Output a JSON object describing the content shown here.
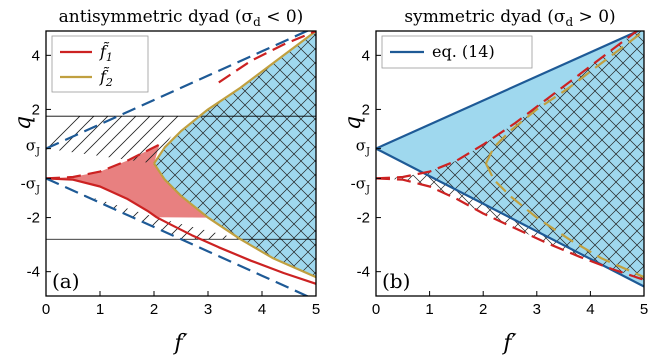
{
  "chart_data": [
    {
      "type": "line",
      "panel_label": "(a)",
      "title": "antisymmetric dyad (σ",
      "title_sub": "d",
      "title_rest": " < 0)",
      "xlabel": "f′",
      "ylabel": "q",
      "xlim": [
        0,
        5
      ],
      "ylim": [
        -4.9,
        4.9
      ],
      "xticks": [
        0,
        1,
        2,
        3,
        4,
        5
      ],
      "yticks": [
        -4,
        -2,
        2,
        4
      ],
      "sigma_J": 0.55,
      "sigma_ticks": [
        {
          "value": 0.55,
          "sign": "",
          "letter": "σ",
          "sub": "J"
        },
        {
          "value": -0.55,
          "sign": "-",
          "letter": "σ",
          "sub": "J"
        }
      ],
      "legend": {
        "position": "top-left",
        "entries": [
          {
            "label": "f̃",
            "sub": "1",
            "color": "#cc2222"
          },
          {
            "label": "f̃",
            "sub": "2",
            "color": "#c0a040"
          }
        ]
      },
      "hlines": [
        1.75,
        -2.8
      ],
      "series": [
        {
          "name": "f̃1",
          "style": "solid",
          "color": "#cc2222",
          "x": [
            0.0,
            0.5,
            1.0,
            1.5,
            1.9,
            2.05,
            2.3,
            2.7,
            3.2,
            3.8,
            4.4,
            5.0
          ],
          "y": [
            -0.55,
            -0.6,
            -0.85,
            -1.3,
            -1.78,
            -1.99,
            -2.25,
            -2.65,
            -3.1,
            -3.6,
            -4.05,
            -4.45
          ]
        },
        {
          "name": "f̃2",
          "style": "solid",
          "color": "#c0a040",
          "x": [
            2.0,
            2.2,
            2.5,
            3.0,
            3.6,
            4.2,
            5.0
          ],
          "y": [
            0.0,
            0.6,
            1.2,
            2.0,
            2.8,
            3.7,
            4.9
          ]
        },
        {
          "name": "f̃2",
          "style": "solid",
          "color": "#c0a040",
          "x": [
            2.0,
            2.2,
            2.5,
            3.0,
            3.6,
            4.2,
            5.0
          ],
          "y": [
            0.0,
            -0.6,
            -1.2,
            -2.0,
            -2.8,
            -3.5,
            -4.2
          ]
        },
        {
          "name": "f̃1",
          "style": "dashed",
          "color": "#cc2222",
          "x": [
            0.0,
            0.5,
            1.0,
            1.5,
            2.1
          ],
          "y": [
            -0.55,
            -0.5,
            -0.3,
            0.1,
            0.7
          ]
        },
        {
          "name": "f̃1",
          "style": "dashed",
          "color": "#cc2222",
          "x": [
            3.2,
            3.8,
            4.4,
            5.0
          ],
          "y": [
            3.0,
            3.8,
            4.4,
            4.9
          ]
        },
        {
          "name": "eq. (14)",
          "style": "dashed",
          "color": "#1e5a96",
          "x": [
            0.0,
            1.0,
            2.0,
            3.0,
            4.0,
            5.0
          ],
          "y": [
            0.55,
            1.45,
            2.35,
            3.25,
            4.15,
            5.05
          ]
        },
        {
          "name": "eq. (14)",
          "style": "dashed",
          "color": "#1e5a96",
          "x": [
            0.0,
            1.0,
            2.0,
            3.0,
            4.0,
            5.0
          ],
          "y": [
            -0.55,
            -1.45,
            -2.35,
            -3.25,
            -4.15,
            -5.05
          ]
        }
      ]
    },
    {
      "type": "line",
      "panel_label": "(b)",
      "title": "symmetric dyad (σ",
      "title_sub": "d",
      "title_rest": " > 0)",
      "xlabel": "f′",
      "ylabel": "q",
      "xlim": [
        0,
        5
      ],
      "ylim": [
        -4.9,
        4.9
      ],
      "xticks": [
        0,
        1,
        2,
        3,
        4,
        5
      ],
      "yticks": [
        -4,
        -2,
        2,
        4
      ],
      "sigma_J": 0.55,
      "sigma_ticks": [
        {
          "value": 0.55,
          "sign": "",
          "letter": "σ",
          "sub": "J"
        },
        {
          "value": -0.55,
          "sign": "-",
          "letter": "σ",
          "sub": "J"
        }
      ],
      "legend": {
        "position": "top-left",
        "entries": [
          {
            "label": "eq. (14)",
            "sub": "",
            "color": "#1e5a96"
          }
        ]
      },
      "series": [
        {
          "name": "eq. (14)",
          "style": "solid",
          "color": "#1e5a96",
          "x": [
            0.0,
            5.0
          ],
          "y": [
            0.55,
            5.0
          ]
        },
        {
          "name": "eq. (14)",
          "style": "solid",
          "color": "#1e5a96",
          "x": [
            0.0,
            5.0
          ],
          "y": [
            0.55,
            -4.55
          ]
        },
        {
          "name": "f̃1",
          "style": "dashed",
          "color": "#cc2222",
          "x": [
            0.0,
            0.5,
            1.0,
            1.5,
            2.0,
            2.6,
            3.2,
            3.8,
            4.4,
            5.0
          ],
          "y": [
            -0.55,
            -0.5,
            -0.3,
            0.1,
            0.7,
            1.5,
            2.4,
            3.3,
            4.2,
            5.1
          ]
        },
        {
          "name": "f̃1",
          "style": "dashed",
          "color": "#cc2222",
          "x": [
            0.0,
            0.5,
            1.0,
            1.5,
            2.0,
            2.6,
            3.2,
            3.8,
            4.4,
            5.0
          ],
          "y": [
            -0.55,
            -0.6,
            -0.85,
            -1.3,
            -1.85,
            -2.4,
            -2.95,
            -3.45,
            -3.9,
            -4.3
          ]
        },
        {
          "name": "f̃2",
          "style": "dashed",
          "color": "#c0a040",
          "x": [
            2.05,
            2.2,
            2.5,
            3.0,
            3.6,
            4.2,
            5.0
          ],
          "y": [
            0.0,
            0.6,
            1.2,
            2.0,
            2.8,
            3.7,
            4.9
          ]
        },
        {
          "name": "f̃2",
          "style": "dashed",
          "color": "#c0a040",
          "x": [
            2.05,
            2.2,
            2.5,
            3.0,
            3.6,
            4.2,
            5.0
          ],
          "y": [
            0.0,
            -0.6,
            -1.2,
            -2.0,
            -2.8,
            -3.5,
            -4.2
          ]
        }
      ]
    }
  ]
}
